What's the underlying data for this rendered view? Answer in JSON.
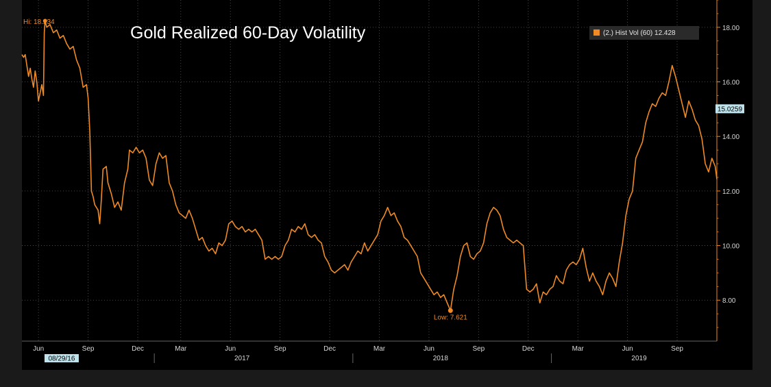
{
  "colors": {
    "background": "#000000",
    "frame": "#1a1a1a",
    "line": "#f08a24",
    "grid": "#5a5a5a",
    "text": "#d9d9d9",
    "last_badge_bg": "#bfe3ec"
  },
  "chart_data": {
    "type": "line",
    "title": "Gold Realized 60-Day Volatility",
    "xlabel": "",
    "ylabel": "",
    "ylim": [
      6.5,
      19.0
    ],
    "y_ticks": [
      "8.00",
      "10.00",
      "12.00",
      "14.00",
      "16.00",
      "18.00"
    ],
    "x_range_months": [
      0,
      31
    ],
    "x_tick_labels": [
      {
        "m": 1,
        "label": "Jun"
      },
      {
        "m": 4,
        "label": "Sep"
      },
      {
        "m": 7,
        "label": "Dec"
      },
      {
        "m": 9.6,
        "label": "Mar"
      },
      {
        "m": 12.6,
        "label": "Jun"
      },
      {
        "m": 15.6,
        "label": "Sep"
      },
      {
        "m": 18.6,
        "label": "Dec"
      },
      {
        "m": 21.6,
        "label": "Mar"
      },
      {
        "m": 24.6,
        "label": "Jun"
      },
      {
        "m": 27.6,
        "label": "Sep"
      },
      {
        "m": 30.6,
        "label": "Dec"
      },
      {
        "m": 33.6,
        "label": "Mar"
      },
      {
        "m": 36.6,
        "label": "Jun"
      },
      {
        "m": 39.6,
        "label": "Sep"
      }
    ],
    "year_labels": [
      {
        "m": 13.3,
        "label": "2017"
      },
      {
        "m": 25.3,
        "label": "2018"
      },
      {
        "m": 37.3,
        "label": "2019"
      }
    ],
    "date_badge": {
      "m": 2.4,
      "label": "08/29/16"
    },
    "series": [
      {
        "name": "(2.) Hist Vol (60)",
        "last_value": "12.428",
        "points": [
          [
            0.0,
            17.0
          ],
          [
            0.1,
            16.9
          ],
          [
            0.2,
            17.0
          ],
          [
            0.3,
            16.6
          ],
          [
            0.4,
            16.2
          ],
          [
            0.5,
            16.5
          ],
          [
            0.6,
            16.1
          ],
          [
            0.7,
            15.8
          ],
          [
            0.8,
            16.4
          ],
          [
            0.9,
            16.0
          ],
          [
            1.0,
            15.3
          ],
          [
            1.1,
            15.6
          ],
          [
            1.2,
            15.9
          ],
          [
            1.3,
            15.5
          ],
          [
            1.35,
            17.8
          ],
          [
            1.4,
            18.234
          ],
          [
            1.5,
            18.0
          ],
          [
            1.7,
            18.1
          ],
          [
            1.9,
            17.8
          ],
          [
            2.1,
            17.9
          ],
          [
            2.3,
            17.6
          ],
          [
            2.5,
            17.7
          ],
          [
            2.7,
            17.4
          ],
          [
            2.9,
            17.2
          ],
          [
            3.1,
            17.3
          ],
          [
            3.3,
            16.8
          ],
          [
            3.5,
            16.5
          ],
          [
            3.7,
            15.8
          ],
          [
            3.9,
            15.9
          ],
          [
            4.0,
            15.4
          ],
          [
            4.1,
            14.2
          ],
          [
            4.2,
            12.0
          ],
          [
            4.3,
            11.8
          ],
          [
            4.4,
            11.5
          ],
          [
            4.6,
            11.3
          ],
          [
            4.7,
            10.8
          ],
          [
            4.8,
            11.7
          ],
          [
            4.9,
            12.8
          ],
          [
            5.1,
            12.9
          ],
          [
            5.2,
            12.3
          ],
          [
            5.4,
            11.9
          ],
          [
            5.6,
            11.4
          ],
          [
            5.8,
            11.6
          ],
          [
            6.0,
            11.3
          ],
          [
            6.2,
            12.3
          ],
          [
            6.4,
            12.8
          ],
          [
            6.5,
            13.5
          ],
          [
            6.7,
            13.4
          ],
          [
            6.9,
            13.6
          ],
          [
            7.1,
            13.4
          ],
          [
            7.3,
            13.5
          ],
          [
            7.5,
            13.2
          ],
          [
            7.7,
            12.4
          ],
          [
            7.9,
            12.2
          ],
          [
            8.1,
            13.0
          ],
          [
            8.3,
            13.4
          ],
          [
            8.5,
            13.2
          ],
          [
            8.7,
            13.3
          ],
          [
            8.9,
            12.3
          ],
          [
            9.1,
            12.0
          ],
          [
            9.3,
            11.5
          ],
          [
            9.5,
            11.2
          ],
          [
            9.7,
            11.1
          ],
          [
            9.9,
            11.0
          ],
          [
            10.1,
            11.3
          ],
          [
            10.3,
            11.0
          ],
          [
            10.5,
            10.6
          ],
          [
            10.7,
            10.2
          ],
          [
            10.9,
            10.3
          ],
          [
            11.1,
            10.0
          ],
          [
            11.3,
            9.8
          ],
          [
            11.5,
            9.9
          ],
          [
            11.7,
            9.7
          ],
          [
            11.9,
            10.1
          ],
          [
            12.1,
            10.0
          ],
          [
            12.3,
            10.2
          ],
          [
            12.5,
            10.8
          ],
          [
            12.7,
            10.9
          ],
          [
            12.9,
            10.7
          ],
          [
            13.1,
            10.6
          ],
          [
            13.3,
            10.7
          ],
          [
            13.5,
            10.5
          ],
          [
            13.7,
            10.6
          ],
          [
            13.9,
            10.5
          ],
          [
            14.1,
            10.6
          ],
          [
            14.3,
            10.4
          ],
          [
            14.5,
            10.2
          ],
          [
            14.7,
            9.5
          ],
          [
            14.9,
            9.6
          ],
          [
            15.1,
            9.5
          ],
          [
            15.3,
            9.6
          ],
          [
            15.5,
            9.5
          ],
          [
            15.7,
            9.6
          ],
          [
            15.9,
            10.0
          ],
          [
            16.1,
            10.2
          ],
          [
            16.3,
            10.6
          ],
          [
            16.5,
            10.5
          ],
          [
            16.7,
            10.7
          ],
          [
            16.9,
            10.6
          ],
          [
            17.1,
            10.8
          ],
          [
            17.3,
            10.4
          ],
          [
            17.5,
            10.3
          ],
          [
            17.7,
            10.4
          ],
          [
            17.9,
            10.2
          ],
          [
            18.1,
            10.1
          ],
          [
            18.3,
            9.6
          ],
          [
            18.5,
            9.4
          ],
          [
            18.7,
            9.1
          ],
          [
            18.9,
            9.0
          ],
          [
            19.1,
            9.1
          ],
          [
            19.3,
            9.2
          ],
          [
            19.5,
            9.3
          ],
          [
            19.7,
            9.1
          ],
          [
            19.9,
            9.4
          ],
          [
            20.1,
            9.6
          ],
          [
            20.3,
            9.8
          ],
          [
            20.5,
            9.7
          ],
          [
            20.7,
            10.1
          ],
          [
            20.9,
            9.8
          ],
          [
            21.1,
            10.0
          ],
          [
            21.3,
            10.2
          ],
          [
            21.5,
            10.4
          ],
          [
            21.7,
            10.9
          ],
          [
            21.9,
            11.1
          ],
          [
            22.1,
            11.4
          ],
          [
            22.3,
            11.1
          ],
          [
            22.5,
            11.2
          ],
          [
            22.7,
            10.9
          ],
          [
            22.9,
            10.7
          ],
          [
            23.1,
            10.3
          ],
          [
            23.3,
            10.2
          ],
          [
            23.5,
            10.0
          ],
          [
            23.7,
            9.8
          ],
          [
            23.9,
            9.6
          ],
          [
            24.1,
            9.0
          ],
          [
            24.3,
            8.8
          ],
          [
            24.5,
            8.6
          ],
          [
            24.7,
            8.4
          ],
          [
            24.9,
            8.2
          ],
          [
            25.1,
            8.3
          ],
          [
            25.3,
            8.1
          ],
          [
            25.5,
            8.2
          ],
          [
            25.7,
            7.9
          ],
          [
            25.9,
            7.621
          ],
          [
            26.1,
            8.4
          ],
          [
            26.3,
            8.9
          ],
          [
            26.5,
            9.6
          ],
          [
            26.7,
            10.0
          ],
          [
            26.9,
            10.1
          ],
          [
            27.1,
            9.6
          ],
          [
            27.3,
            9.5
          ],
          [
            27.5,
            9.7
          ],
          [
            27.7,
            9.8
          ],
          [
            27.9,
            10.1
          ],
          [
            28.1,
            10.8
          ],
          [
            28.3,
            11.2
          ],
          [
            28.5,
            11.4
          ],
          [
            28.7,
            11.3
          ],
          [
            28.9,
            11.1
          ],
          [
            29.1,
            10.6
          ],
          [
            29.3,
            10.3
          ],
          [
            29.5,
            10.2
          ],
          [
            29.7,
            10.1
          ],
          [
            29.9,
            10.2
          ],
          [
            30.1,
            10.1
          ],
          [
            30.3,
            10.0
          ],
          [
            30.5,
            8.4
          ],
          [
            30.7,
            8.3
          ],
          [
            30.9,
            8.4
          ],
          [
            31.1,
            8.6
          ],
          [
            31.3,
            7.9
          ],
          [
            31.5,
            8.3
          ],
          [
            31.7,
            8.2
          ],
          [
            31.9,
            8.4
          ],
          [
            32.1,
            8.5
          ],
          [
            32.3,
            8.9
          ],
          [
            32.5,
            8.7
          ],
          [
            32.7,
            8.6
          ],
          [
            32.9,
            9.1
          ],
          [
            33.1,
            9.3
          ],
          [
            33.3,
            9.4
          ],
          [
            33.5,
            9.3
          ],
          [
            33.7,
            9.5
          ],
          [
            33.9,
            9.9
          ],
          [
            34.1,
            9.2
          ],
          [
            34.3,
            8.7
          ],
          [
            34.5,
            9.0
          ],
          [
            34.7,
            8.7
          ],
          [
            34.9,
            8.5
          ],
          [
            35.1,
            8.2
          ],
          [
            35.3,
            8.7
          ],
          [
            35.5,
            9.0
          ],
          [
            35.7,
            8.8
          ],
          [
            35.9,
            8.5
          ],
          [
            36.1,
            9.4
          ],
          [
            36.3,
            10.1
          ],
          [
            36.5,
            11.1
          ],
          [
            36.7,
            11.7
          ],
          [
            36.9,
            12.0
          ],
          [
            37.1,
            13.2
          ],
          [
            37.3,
            13.5
          ],
          [
            37.5,
            13.8
          ],
          [
            37.7,
            14.5
          ],
          [
            37.9,
            14.9
          ],
          [
            38.1,
            15.2
          ],
          [
            38.3,
            15.1
          ],
          [
            38.5,
            15.4
          ],
          [
            38.7,
            15.6
          ],
          [
            38.9,
            15.5
          ],
          [
            39.1,
            16.0
          ],
          [
            39.3,
            16.6
          ],
          [
            39.5,
            16.2
          ],
          [
            39.7,
            15.7
          ],
          [
            39.9,
            15.2
          ],
          [
            40.1,
            14.7
          ],
          [
            40.3,
            15.3
          ],
          [
            40.5,
            15.0
          ],
          [
            40.7,
            14.6
          ],
          [
            40.9,
            14.4
          ],
          [
            41.1,
            13.9
          ],
          [
            41.3,
            13.0
          ],
          [
            41.5,
            12.7
          ],
          [
            41.7,
            13.2
          ],
          [
            41.9,
            12.9
          ],
          [
            42.0,
            12.428
          ]
        ]
      }
    ],
    "annotations": {
      "high": {
        "label": "Hi: 18.234",
        "m": 1.4,
        "value": 18.234
      },
      "low": {
        "label": "Low: 7.621",
        "m": 25.9,
        "value": 7.621
      },
      "marker_badge": "15.0259",
      "marker_value": 15.0259
    },
    "legend": {
      "position": "top-right",
      "text": "(2.) Hist Vol (60)  12.428"
    },
    "grid": true
  }
}
